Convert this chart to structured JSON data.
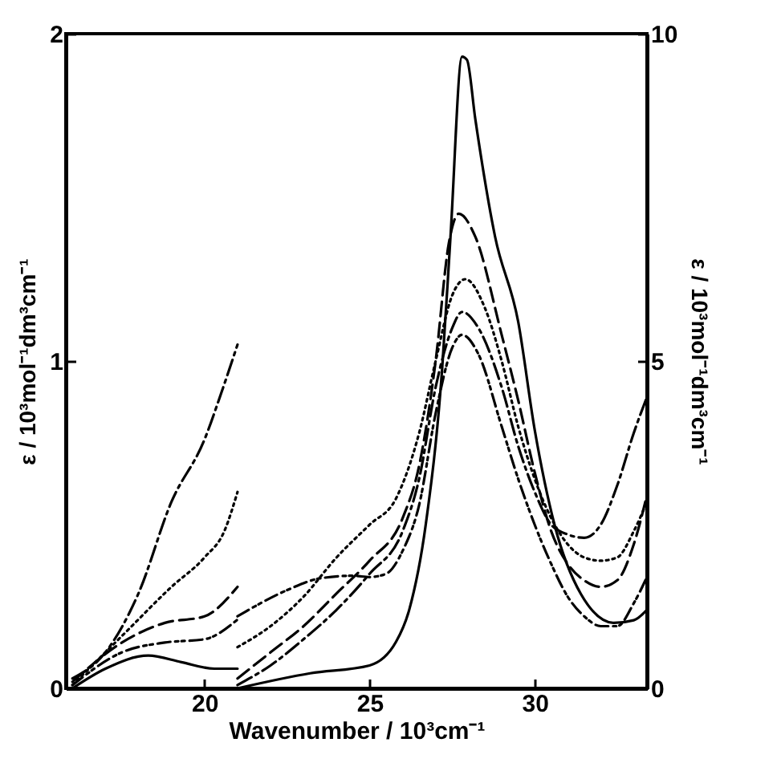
{
  "chart_data": {
    "type": "line",
    "xlabel": "Wavenumber / 10³cm⁻¹",
    "ylabel": "ε / 10³mol⁻¹dm³cm⁻¹",
    "y2label": "ε / 10³mol⁻¹dm³cm⁻¹",
    "xlim": [
      15.8,
      33.4
    ],
    "xticks": [
      20,
      25,
      30
    ],
    "ylim": [
      0,
      2
    ],
    "yticks": [
      0,
      1,
      2
    ],
    "y2lim": [
      0,
      10
    ],
    "y2ticks": [
      0,
      5,
      10
    ],
    "grid": false,
    "legend": false,
    "marker": "none",
    "series": [
      {
        "color": "#000000",
        "line_style": "solid",
        "axis": "y",
        "x": [
          16,
          17,
          18.3,
          19.3,
          20.3,
          21
        ],
        "values": [
          0.0,
          0.06,
          0.1,
          0.08,
          0.06,
          0.06
        ]
      },
      {
        "color": "#000000",
        "line_style": "dashdot",
        "axis": "y",
        "x": [
          16,
          17,
          18,
          19,
          20,
          20.5,
          21
        ],
        "values": [
          0.03,
          0.11,
          0.29,
          0.57,
          0.76,
          0.9,
          1.05
        ]
      },
      {
        "color": "#000000",
        "line_style": "dotted",
        "axis": "y",
        "x": [
          16,
          17.5,
          19,
          20,
          20.6,
          21
        ],
        "values": [
          0.01,
          0.16,
          0.31,
          0.4,
          0.48,
          0.6
        ]
      },
      {
        "color": "#000000",
        "line_style": "dashed",
        "axis": "y",
        "x": [
          16,
          17.5,
          18.8,
          20,
          21
        ],
        "values": [
          0.02,
          0.14,
          0.2,
          0.22,
          0.31
        ]
      },
      {
        "color": "#000000",
        "line_style": "dashdotdot",
        "axis": "y",
        "x": [
          16,
          17.5,
          18.8,
          20,
          21
        ],
        "values": [
          0.01,
          0.11,
          0.14,
          0.15,
          0.21
        ]
      },
      {
        "color": "#000000",
        "line_style": "solid",
        "axis": "y2",
        "x": [
          21,
          23.2,
          25,
          25.8,
          26.2,
          26.7,
          27.2,
          27.45,
          27.8,
          27.95,
          28.2,
          28.8,
          29.5,
          30,
          30.6,
          31.4,
          32.4,
          33,
          33.4
        ],
        "values": [
          0.0,
          0.23,
          0.35,
          0.71,
          1.2,
          2.5,
          4.9,
          6.9,
          9.65,
          9.6,
          8.7,
          6.9,
          5.6,
          3.95,
          2.5,
          1.44,
          1.0,
          1.04,
          1.2
        ]
      },
      {
        "color": "#000000",
        "line_style": "dashdot",
        "axis": "y2",
        "x": [
          21,
          22,
          23,
          24,
          25,
          26,
          26.5,
          27,
          27.5,
          27.8,
          28.3,
          29,
          29.5,
          30,
          30.5,
          31,
          31.5,
          32,
          32.5,
          33,
          33.4
        ],
        "values": [
          0.05,
          0.35,
          0.75,
          1.2,
          1.75,
          2.4,
          3.2,
          4.6,
          5.5,
          5.75,
          5.5,
          4.6,
          3.7,
          3.0,
          2.5,
          2.35,
          2.3,
          2.5,
          3.1,
          3.9,
          4.45
        ]
      },
      {
        "color": "#000000",
        "line_style": "dotted",
        "axis": "y2",
        "x": [
          21,
          22,
          23,
          24,
          25,
          25.8,
          26.5,
          27,
          27.5,
          27.9,
          28.5,
          29,
          29.5,
          30,
          30.5,
          31,
          31.5,
          32,
          32.5,
          33,
          33.4
        ],
        "values": [
          0.63,
          0.95,
          1.4,
          2.0,
          2.5,
          2.9,
          3.9,
          5.0,
          6.0,
          6.25,
          5.8,
          5.0,
          4.0,
          3.2,
          2.6,
          2.2,
          2.0,
          1.95,
          2.0,
          2.4,
          2.85
        ]
      },
      {
        "color": "#000000",
        "line_style": "dashed",
        "axis": "y2",
        "x": [
          21,
          22,
          23,
          24,
          25,
          26,
          26.5,
          27,
          27.4,
          27.7,
          28.2,
          29,
          29.5,
          30,
          30.5,
          31,
          31.5,
          32,
          32.5,
          33,
          33.4
        ],
        "values": [
          0.15,
          0.55,
          0.95,
          1.45,
          1.95,
          2.6,
          3.4,
          5.0,
          6.8,
          7.25,
          6.9,
          5.4,
          4.4,
          3.3,
          2.4,
          1.9,
          1.65,
          1.55,
          1.65,
          2.2,
          2.95
        ]
      },
      {
        "color": "#000000",
        "line_style": "dashdotdot",
        "axis": "y2",
        "x": [
          21,
          22.5,
          23.5,
          24.5,
          25,
          25.5,
          26,
          26.5,
          27,
          27.5,
          27.8,
          28.3,
          29,
          29.5,
          30,
          30.5,
          31,
          31.5,
          32,
          32.5,
          33,
          33.4
        ],
        "values": [
          1.1,
          1.5,
          1.68,
          1.72,
          1.7,
          1.75,
          2.1,
          2.8,
          4.2,
          5.2,
          5.4,
          5.1,
          4.0,
          3.2,
          2.5,
          1.9,
          1.4,
          1.1,
          0.95,
          0.95,
          1.3,
          1.7
        ]
      }
    ]
  }
}
